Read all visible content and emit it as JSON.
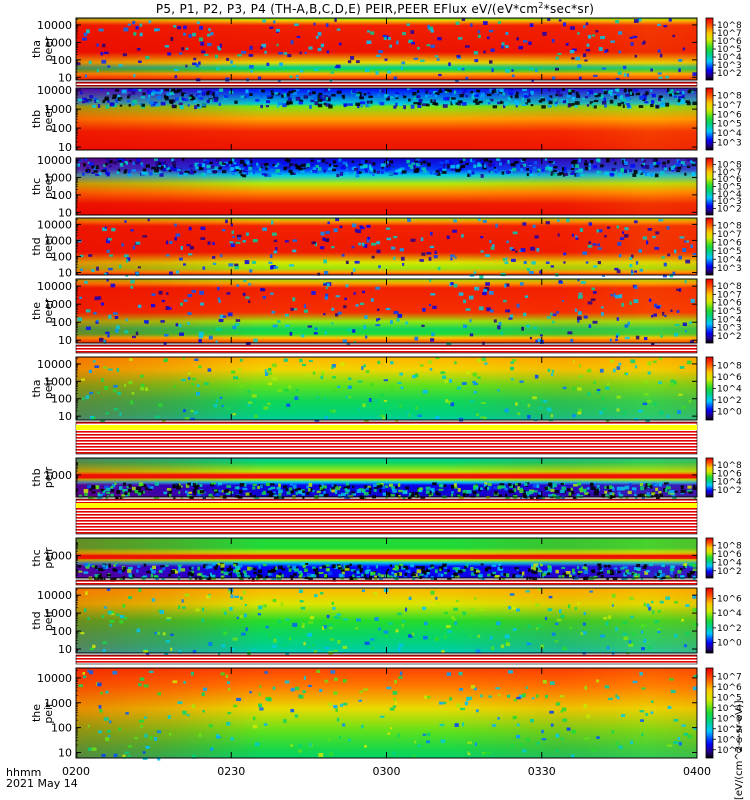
{
  "figure": {
    "title_prefix": "P5, P1, P2, P3, P4 (TH-A,B,C,D,E) PEIR,PEER EFlux eV/(eV*cm",
    "title_sup": "2",
    "title_suffix": "*sec*sr)",
    "time_label_line1": "hhmm",
    "time_label_line2": "2021 May 14",
    "colorbar_unit": "[eV/(cm^2-s-sr-eV)]"
  },
  "chart_data": [
    {
      "type": "heatmap",
      "panel": "tha peer",
      "ylabel": [
        "tha",
        "peer"
      ],
      "yscale": "log",
      "ylim": [
        7,
        25000
      ],
      "y_ticks": [
        "10",
        "100",
        "1000",
        "10000"
      ],
      "xlabel": "hhmm",
      "x_ticks": [
        "0200",
        "0230",
        "0300",
        "0330",
        "0400"
      ],
      "xlim": [
        "0200",
        "0400"
      ],
      "colorbar": {
        "scale": "log",
        "range": [
          100.0,
          100000000.0
        ],
        "tick_labels": [
          "10^2",
          "10^3",
          "10^4",
          "10^5",
          "10^6",
          "10^7",
          "10^8"
        ]
      }
    },
    {
      "type": "heatmap",
      "panel": "thb peer",
      "ylabel": [
        "thb",
        "peer"
      ],
      "yscale": "log",
      "ylim": [
        7,
        13000
      ],
      "y_ticks": [
        "10",
        "100",
        "1000",
        "10000"
      ],
      "x_ticks": [
        "0200",
        "0230",
        "0300",
        "0330",
        "0400"
      ],
      "colorbar": {
        "scale": "log",
        "range": [
          1000.0,
          100000000.0
        ],
        "tick_labels": [
          "10^3",
          "10^4",
          "10^5",
          "10^6",
          "10^7",
          "10^8"
        ]
      }
    },
    {
      "type": "heatmap",
      "panel": "thc peer",
      "ylabel": [
        "thc",
        "peer"
      ],
      "yscale": "log",
      "ylim": [
        7,
        13000
      ],
      "y_ticks": [
        "10",
        "100",
        "1000",
        "10000"
      ],
      "x_ticks": [
        "0200",
        "0230",
        "0300",
        "0330",
        "0400"
      ],
      "colorbar": {
        "scale": "log",
        "range": [
          100.0,
          100000000.0
        ],
        "tick_labels": [
          "10^2",
          "10^3",
          "10^4",
          "10^5",
          "10^6",
          "10^7",
          "10^8"
        ]
      }
    },
    {
      "type": "heatmap",
      "panel": "thd peer",
      "ylabel": [
        "thd",
        "peer"
      ],
      "yscale": "log",
      "ylim": [
        7,
        25000
      ],
      "y_ticks": [
        "10",
        "100",
        "1000",
        "10000"
      ],
      "x_ticks": [
        "0200",
        "0230",
        "0300",
        "0330",
        "0400"
      ],
      "colorbar": {
        "scale": "log",
        "range": [
          1000.0,
          100000000.0
        ],
        "tick_labels": [
          "10^3",
          "10^4",
          "10^5",
          "10^6",
          "10^7",
          "10^8"
        ]
      }
    },
    {
      "type": "heatmap",
      "panel": "the peer",
      "ylabel": [
        "the",
        "peer"
      ],
      "yscale": "log",
      "ylim": [
        7,
        25000
      ],
      "y_ticks": [
        "10",
        "100",
        "1000",
        "10000"
      ],
      "x_ticks": [
        "0200",
        "0230",
        "0300",
        "0330",
        "0400"
      ],
      "colorbar": {
        "scale": "log",
        "range": [
          100.0,
          100000000.0
        ],
        "tick_labels": [
          "10^2",
          "10^3",
          "10^4",
          "10^5",
          "10^6",
          "10^7",
          "10^8"
        ]
      }
    },
    {
      "type": "heatmap",
      "panel": "tha peir",
      "ylabel": [
        "tha",
        "peir"
      ],
      "yscale": "log",
      "ylim": [
        6,
        25000
      ],
      "y_ticks": [
        "10",
        "100",
        "1000",
        "10000"
      ],
      "x_ticks": [
        "0200",
        "0230",
        "0300",
        "0330",
        "0400"
      ],
      "colorbar": {
        "scale": "log",
        "range": [
          1.0,
          100000000.0
        ],
        "tick_labels": [
          "10^0",
          "10^2",
          "10^4",
          "10^6",
          "10^8"
        ]
      }
    },
    {
      "type": "heatmap",
      "panel": "thb peir",
      "ylabel": [
        "thb",
        "peir"
      ],
      "yscale": "log",
      "ylim": [
        20,
        20000
      ],
      "y_ticks": [
        "1000"
      ],
      "x_ticks": [
        "0200",
        "0230",
        "0300",
        "0330",
        "0400"
      ],
      "colorbar": {
        "scale": "log",
        "range": [
          100.0,
          100000000.0
        ],
        "tick_labels": [
          "10^2",
          "10^4",
          "10^6",
          "10^8"
        ]
      }
    },
    {
      "type": "heatmap",
      "panel": "thc peir",
      "ylabel": [
        "thc",
        "peir"
      ],
      "yscale": "log",
      "ylim": [
        20,
        20000
      ],
      "y_ticks": [
        "1000"
      ],
      "x_ticks": [
        "0200",
        "0230",
        "0300",
        "0330",
        "0400"
      ],
      "colorbar": {
        "scale": "log",
        "range": [
          100.0,
          100000000.0
        ],
        "tick_labels": [
          "10^2",
          "10^4",
          "10^6",
          "10^8"
        ]
      }
    },
    {
      "type": "heatmap",
      "panel": "thd peir",
      "ylabel": [
        "thd",
        "peir"
      ],
      "yscale": "log",
      "ylim": [
        6,
        25000
      ],
      "y_ticks": [
        "10",
        "100",
        "1000",
        "10000"
      ],
      "x_ticks": [
        "0200",
        "0230",
        "0300",
        "0330",
        "0400"
      ],
      "colorbar": {
        "scale": "log",
        "range": [
          1.0,
          1000000.0
        ],
        "tick_labels": [
          "10^0",
          "10^2",
          "10^4",
          "10^6"
        ]
      }
    },
    {
      "type": "heatmap",
      "panel": "the peir",
      "ylabel": [
        "the",
        "peir"
      ],
      "yscale": "log",
      "ylim": [
        6,
        25000
      ],
      "y_ticks": [
        "10",
        "100",
        "1000",
        "10000"
      ],
      "x_ticks": [
        "0200",
        "0230",
        "0300",
        "0330",
        "0400"
      ],
      "colorbar": {
        "scale": "log",
        "range": [
          1.0,
          10000000.0
        ],
        "tick_labels": [
          "10^0",
          "10^1",
          "10^2",
          "10^3",
          "10^4",
          "10^5",
          "10^6",
          "10^7"
        ]
      }
    }
  ]
}
